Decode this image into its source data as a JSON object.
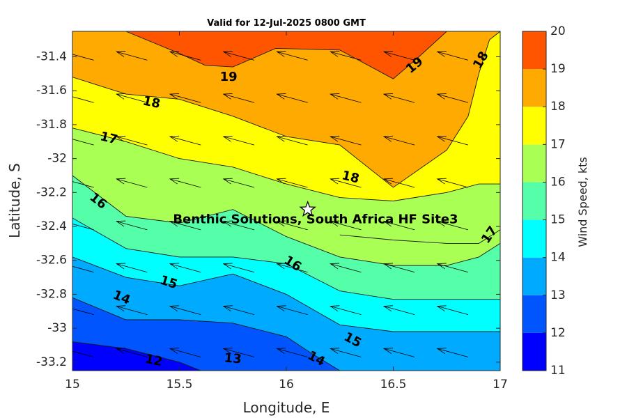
{
  "chart_data": {
    "type": "contourf",
    "title": "Valid for 12-Jul-2025 0800 GMT",
    "xlabel": "Longitude, E",
    "ylabel": "Latitude, S",
    "xlim": [
      15,
      17
    ],
    "ylim": [
      -33.25,
      -31.25
    ],
    "xticks": [
      "15",
      "15.5",
      "16",
      "16.5",
      "17"
    ],
    "yticks": [
      "-31.4",
      "-31.6",
      "-31.8",
      "-32",
      "-32.2",
      "-32.4",
      "-32.6",
      "-32.8",
      "-33",
      "-33.2"
    ],
    "colorbar": {
      "label": "Wind Speed, kts",
      "range": [
        11,
        20
      ],
      "ticks": [
        "11",
        "12",
        "13",
        "14",
        "15",
        "16",
        "17",
        "18",
        "19",
        "20"
      ],
      "colors": [
        "#0000ff",
        "#0055ff",
        "#00aaff",
        "#00ffff",
        "#55ffaa",
        "#aaff55",
        "#ffff00",
        "#ffaa00",
        "#ff5500"
      ]
    },
    "contours": [
      {
        "level": 12,
        "points": [
          [
            15,
            -33.08
          ],
          [
            15.25,
            -33.12
          ],
          [
            15.5,
            -33.2
          ],
          [
            15.6,
            -33.25
          ]
        ]
      },
      {
        "level": 13,
        "points": [
          [
            15,
            -32.82
          ],
          [
            15.25,
            -32.95
          ],
          [
            15.5,
            -32.95
          ],
          [
            15.75,
            -32.97
          ],
          [
            16,
            -33.05
          ],
          [
            16.12,
            -33.15
          ],
          [
            16.25,
            -33.25
          ]
        ]
      },
      {
        "level": 14,
        "points": [
          [
            15,
            -32.58
          ],
          [
            15.25,
            -32.7
          ],
          [
            15.5,
            -32.75
          ],
          [
            15.75,
            -32.68
          ],
          [
            16,
            -32.8
          ],
          [
            16.25,
            -32.98
          ],
          [
            16.5,
            -33.02
          ],
          [
            17,
            -33.02
          ]
        ]
      },
      {
        "level": 15,
        "points": [
          [
            15,
            -32.35
          ],
          [
            15.25,
            -32.53
          ],
          [
            15.5,
            -32.58
          ],
          [
            15.75,
            -32.58
          ],
          [
            16,
            -32.62
          ],
          [
            16.25,
            -32.78
          ],
          [
            16.5,
            -32.83
          ],
          [
            17,
            -32.83
          ]
        ]
      },
      {
        "level": 16,
        "points": [
          [
            15,
            -32.1
          ],
          [
            15.25,
            -32.34
          ],
          [
            15.5,
            -32.38
          ],
          [
            15.75,
            -32.3
          ],
          [
            16,
            -32.46
          ],
          [
            16.25,
            -32.58
          ],
          [
            16.5,
            -32.63
          ],
          [
            16.75,
            -32.63
          ],
          [
            16.9,
            -32.58
          ],
          [
            17,
            -32.5
          ]
        ]
      },
      {
        "level": 17,
        "points": [
          [
            15,
            -31.82
          ],
          [
            15.25,
            -31.9
          ],
          [
            15.5,
            -32
          ],
          [
            15.75,
            -32.05
          ],
          [
            16,
            -32.15
          ],
          [
            16.25,
            -32.23
          ],
          [
            16.5,
            -32.25
          ],
          [
            16.75,
            -32.2
          ],
          [
            16.9,
            -32.15
          ],
          [
            17,
            -32.15
          ],
          [
            17,
            -32.42
          ],
          [
            16.9,
            -32.5
          ],
          [
            16.75,
            -32.5
          ],
          [
            16.5,
            -32.48
          ],
          [
            16.25,
            -32.45
          ]
        ]
      },
      {
        "level": 18,
        "points": [
          [
            15,
            -31.52
          ],
          [
            15.25,
            -31.62
          ],
          [
            15.5,
            -31.65
          ],
          [
            15.75,
            -31.75
          ],
          [
            16,
            -31.87
          ],
          [
            16.25,
            -31.92
          ],
          [
            16.5,
            -32.17
          ],
          [
            16.75,
            -31.95
          ],
          [
            16.85,
            -31.75
          ],
          [
            16.9,
            -31.5
          ],
          [
            16.95,
            -31.3
          ],
          [
            17,
            -31.25
          ]
        ]
      },
      {
        "level": 19,
        "points": [
          [
            15.25,
            -31.25
          ],
          [
            15.5,
            -31.38
          ],
          [
            15.62,
            -31.45
          ],
          [
            15.75,
            -31.46
          ],
          [
            15.95,
            -31.35
          ],
          [
            16.25,
            -31.36
          ],
          [
            16.5,
            -31.53
          ],
          [
            16.62,
            -31.4
          ],
          [
            16.75,
            -31.25
          ]
        ]
      }
    ],
    "contour_labels": [
      {
        "text": "12",
        "lon": 15.38,
        "lat": -33.19,
        "rot": 12
      },
      {
        "text": "13",
        "lon": 15.75,
        "lat": -33.18,
        "rot": 5
      },
      {
        "text": "14",
        "lon": 16.14,
        "lat": -33.18,
        "rot": 28
      },
      {
        "text": "14",
        "lon": 15.23,
        "lat": -32.82,
        "rot": 22
      },
      {
        "text": "15",
        "lon": 15.45,
        "lat": -32.73,
        "rot": 18
      },
      {
        "text": "15",
        "lon": 16.31,
        "lat": -33.07,
        "rot": 28
      },
      {
        "text": "16",
        "lon": 15.12,
        "lat": -32.25,
        "rot": 38
      },
      {
        "text": "16",
        "lon": 16.03,
        "lat": -32.62,
        "rot": 32
      },
      {
        "text": "17",
        "lon": 15.17,
        "lat": -31.88,
        "rot": 14
      },
      {
        "text": "17",
        "lon": 16.95,
        "lat": -32.45,
        "rot": -55
      },
      {
        "text": "18",
        "lon": 15.37,
        "lat": -31.67,
        "rot": 12
      },
      {
        "text": "18",
        "lon": 16.3,
        "lat": -32.11,
        "rot": 14
      },
      {
        "text": "18",
        "lon": 16.91,
        "lat": -31.42,
        "rot": -60
      },
      {
        "text": "19",
        "lon": 15.73,
        "lat": -31.52,
        "rot": 0
      },
      {
        "text": "19",
        "lon": 16.6,
        "lat": -31.45,
        "rot": -40
      }
    ],
    "wind_vector": {
      "u_lon": -0.144,
      "v_lat": 0.05
    },
    "wind_grid": {
      "lons": [
        15.1,
        15.35,
        15.6,
        15.85,
        16.1,
        16.35,
        16.6,
        16.85
      ],
      "lats": [
        -31.42,
        -31.67,
        -31.92,
        -32.17,
        -32.42,
        -32.67,
        -32.92,
        -33.17
      ]
    },
    "site": {
      "label": "Benthic Solutions, South Africa HF Site3",
      "lon": 16.1,
      "lat": -32.3
    }
  }
}
